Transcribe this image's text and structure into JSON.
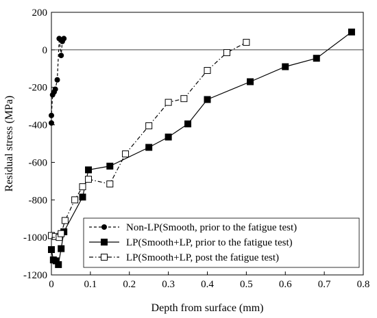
{
  "chart_data": {
    "type": "scatter",
    "title": "",
    "xlabel": "Depth from surface (mm)",
    "ylabel": "Residual stress (MPa)",
    "xlim": [
      0,
      0.8
    ],
    "ylim": [
      -1200,
      200
    ],
    "x_ticks": [
      "0",
      "0.1",
      "0.2",
      "0.3",
      "0.4",
      "0.5",
      "0.6",
      "0.7",
      "0.8"
    ],
    "y_ticks": [
      "200",
      "0",
      "-200",
      "-400",
      "-600",
      "-800",
      "-1000",
      "-1200"
    ],
    "x_tick_values": [
      0,
      0.1,
      0.2,
      0.3,
      0.4,
      0.5,
      0.6,
      0.7,
      0.8
    ],
    "y_tick_values": [
      200,
      0,
      -200,
      -400,
      -600,
      -800,
      -1000,
      -1200
    ],
    "zero_line": true,
    "grid": false,
    "legend_position": "bottom-left",
    "series": [
      {
        "name": "Non-LP(Smooth, prior to the fatigue test)",
        "marker": "filled-circle",
        "line": "dashed",
        "color": "#000000",
        "x": [
          0.0,
          0.0,
          0.003,
          0.007,
          0.01,
          0.015,
          0.02,
          0.025,
          0.028,
          0.032
        ],
        "y": [
          -390,
          -350,
          -240,
          -225,
          -210,
          -160,
          60,
          -30,
          45,
          60
        ]
      },
      {
        "name": "LP(Smooth+LP, prior to the fatigue test)",
        "marker": "filled-square",
        "line": "solid",
        "color": "#000000",
        "x": [
          0.0,
          0.005,
          0.012,
          0.018,
          0.025,
          0.032,
          0.08,
          0.095,
          0.15,
          0.25,
          0.3,
          0.35,
          0.4,
          0.51,
          0.6,
          0.68,
          0.77
        ],
        "y": [
          -1065,
          -1120,
          -1125,
          -1145,
          -1060,
          -970,
          -785,
          -640,
          -620,
          -520,
          -465,
          -395,
          -265,
          -170,
          -90,
          -45,
          95
        ]
      },
      {
        "name": "LP(Smooth+LP, post the fatigue test)",
        "marker": "open-square",
        "line": "dash-dot",
        "color": "#000000",
        "x": [
          0.0,
          0.01,
          0.02,
          0.025,
          0.035,
          0.06,
          0.08,
          0.095,
          0.15,
          0.19,
          0.25,
          0.3,
          0.34,
          0.4,
          0.45,
          0.5
        ],
        "y": [
          -990,
          -995,
          -1000,
          -980,
          -910,
          -800,
          -730,
          -690,
          -715,
          -555,
          -405,
          -280,
          -260,
          -110,
          -15,
          40
        ]
      }
    ]
  }
}
